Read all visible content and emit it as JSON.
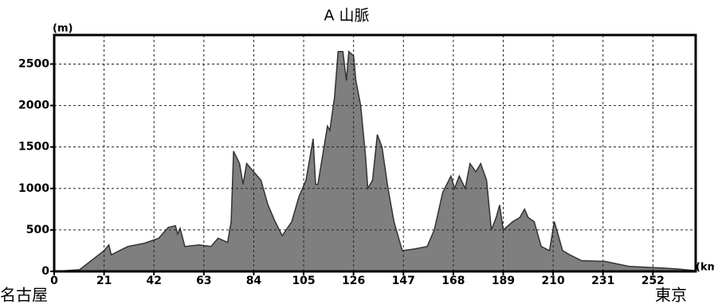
{
  "chart_data": {
    "type": "area",
    "title": "A 山脈",
    "y_label": "(m)",
    "x_label": "(km)",
    "start_label": "名古屋",
    "end_label": "東京",
    "x": [
      0,
      10.7,
      21,
      23,
      24,
      31,
      38,
      44,
      48,
      51,
      52,
      53,
      55,
      61,
      66,
      69,
      73,
      74.5,
      75.5,
      78,
      79.5,
      81,
      84,
      87,
      90,
      93,
      96,
      100,
      103,
      106,
      109,
      110,
      111,
      113,
      115,
      116,
      118,
      119.5,
      121.5,
      123,
      124,
      126,
      127,
      129,
      131,
      132,
      134,
      136,
      138,
      140.5,
      143,
      146.5,
      151.5,
      157,
      160,
      163.5,
      167,
      168.5,
      170.5,
      173,
      175,
      177.5,
      179.5,
      182,
      184,
      186,
      187.5,
      189,
      193,
      196,
      198,
      199.5,
      202,
      205,
      208.5,
      210.5,
      212,
      214,
      217,
      222,
      232,
      242,
      249,
      256,
      262,
      270
    ],
    "values": [
      0,
      20,
      250,
      320,
      200,
      300,
      340,
      400,
      530,
      550,
      450,
      520,
      300,
      320,
      300,
      400,
      350,
      600,
      1450,
      1300,
      1050,
      1300,
      1200,
      1100,
      800,
      600,
      430,
      600,
      900,
      1100,
      1600,
      1050,
      1050,
      1400,
      1750,
      1700,
      2100,
      2650,
      2650,
      2300,
      2650,
      2600,
      2300,
      2000,
      1400,
      1000,
      1100,
      1650,
      1500,
      1000,
      600,
      250,
      270,
      300,
      500,
      950,
      1150,
      1000,
      1150,
      1000,
      1300,
      1200,
      1300,
      1100,
      500,
      650,
      800,
      500,
      600,
      650,
      750,
      650,
      600,
      300,
      250,
      600,
      450,
      250,
      200,
      130,
      120,
      60,
      50,
      40,
      30,
      10
    ],
    "color": "#7f7f7f",
    "line_color": "#333333",
    "xlim": [
      0,
      270
    ],
    "xticks": [
      0,
      21,
      42,
      63,
      84,
      105,
      126,
      147,
      168,
      189,
      210,
      231,
      252
    ],
    "ylim": [
      0,
      2850
    ],
    "yticks": [
      0,
      500,
      1000,
      1500,
      2000,
      2500
    ],
    "grid": true
  }
}
